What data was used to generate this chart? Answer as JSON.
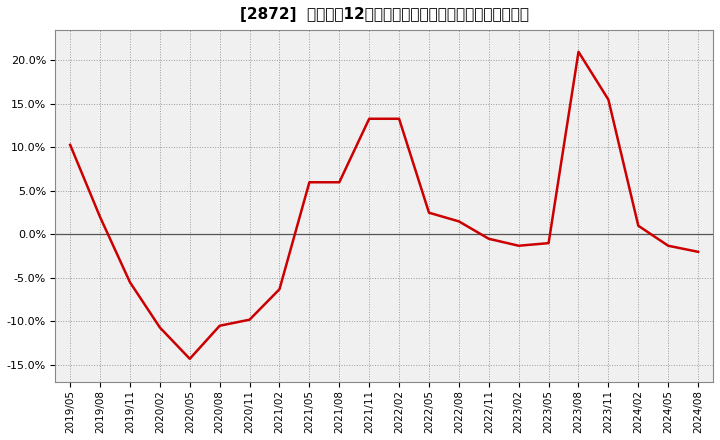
{
  "title": "[2872]  売上高の12か月移動合計の対前年同期増減率の推移",
  "line_color": "#cc0000",
  "background_color": "#ffffff",
  "plot_bg_color": "#f0f0f0",
  "grid_color": "#999999",
  "zero_line_color": "#555555",
  "ylim": [
    -0.17,
    0.235
  ],
  "yticks": [
    -0.15,
    -0.1,
    -0.05,
    0.0,
    0.05,
    0.1,
    0.15,
    0.2
  ],
  "dates": [
    "2019/05",
    "2019/08",
    "2019/11",
    "2020/02",
    "2020/05",
    "2020/08",
    "2020/11",
    "2021/02",
    "2021/05",
    "2021/08",
    "2021/11",
    "2022/02",
    "2022/05",
    "2022/08",
    "2022/11",
    "2023/02",
    "2023/05",
    "2023/08",
    "2023/11",
    "2024/02",
    "2024/05",
    "2024/08"
  ],
  "values": [
    0.103,
    0.02,
    -0.055,
    -0.107,
    -0.143,
    -0.105,
    -0.098,
    -0.063,
    0.06,
    0.06,
    0.133,
    0.133,
    0.025,
    0.015,
    -0.005,
    -0.013,
    -0.01,
    0.21,
    0.155,
    0.01,
    -0.013,
    -0.02
  ],
  "title_fontsize": 11,
  "tick_fontsize": 7.5,
  "ytick_fontsize": 8,
  "line_width": 1.8
}
